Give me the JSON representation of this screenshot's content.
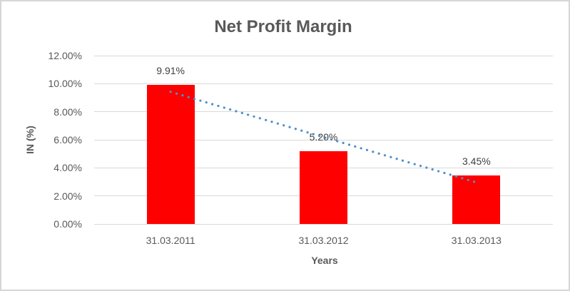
{
  "chart_data": {
    "type": "bar",
    "title": "Net Profit Margin",
    "xlabel": "Years",
    "ylabel": "IN (%)",
    "categories": [
      "31.03.2011",
      "31.03.2012",
      "31.03.2013"
    ],
    "values": [
      9.91,
      5.2,
      3.45
    ],
    "data_labels": [
      "9.91%",
      "5.20%",
      "3.45%"
    ],
    "ylim": [
      0,
      12
    ],
    "y_ticks": [
      {
        "value": 12,
        "label": "12.00%"
      },
      {
        "value": 10,
        "label": "10.00%"
      },
      {
        "value": 8,
        "label": "8.00%"
      },
      {
        "value": 6,
        "label": "6.00%"
      },
      {
        "value": 4,
        "label": "4.00%"
      },
      {
        "value": 2,
        "label": "2.00%"
      },
      {
        "value": 0,
        "label": "0.00%"
      }
    ],
    "grid": true,
    "legend": "none",
    "trendline": {
      "type": "linear",
      "style": "dotted",
      "start_value": 9.42,
      "end_value": 2.96
    },
    "colors": {
      "bar": "#FF0000",
      "trendline": "#4E8FCA",
      "grid": "#D9D9D9",
      "axis_text": "#595959",
      "data_label_text": "#404040",
      "frame": "#D6D6D6",
      "background": "#FFFFFF"
    }
  }
}
